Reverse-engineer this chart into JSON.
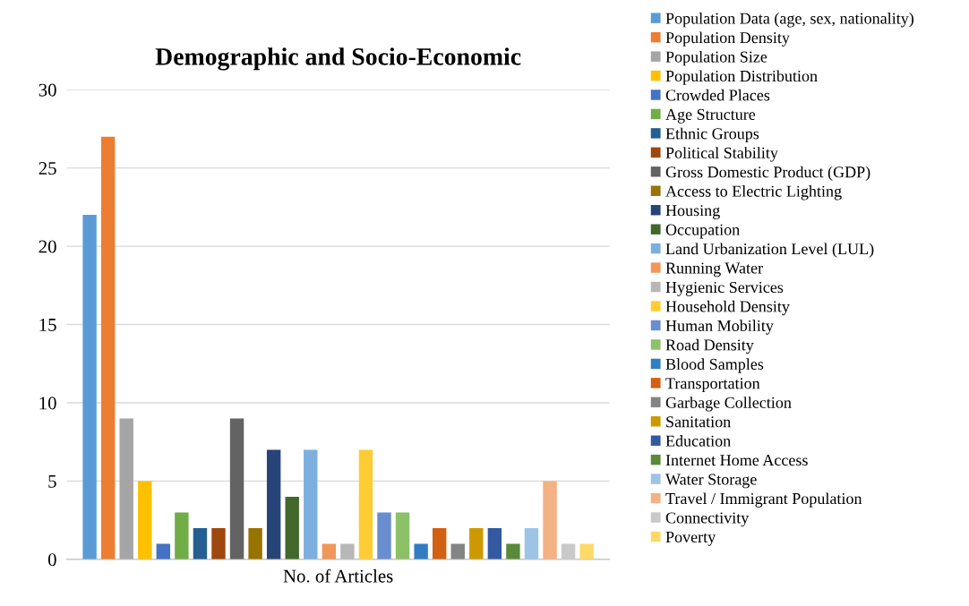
{
  "chart_data": {
    "type": "bar",
    "title": "Demographic and Socio-Economic",
    "categories": [
      "No. of Articles"
    ],
    "ylim": [
      0,
      30
    ],
    "yticks": [
      0,
      5,
      10,
      15,
      20,
      25,
      30
    ],
    "grid": "y",
    "legend": "right",
    "series": [
      {
        "name": "Population Data (age, sex, nationality)",
        "color": "#5b9bd5",
        "values": [
          22
        ]
      },
      {
        "name": "Population Density",
        "color": "#ed7d31",
        "values": [
          27
        ]
      },
      {
        "name": "Population Size",
        "color": "#a5a5a5",
        "values": [
          9
        ]
      },
      {
        "name": "Population Distribution",
        "color": "#ffc000",
        "values": [
          5
        ]
      },
      {
        "name": "Crowded Places",
        "color": "#4472c4",
        "values": [
          1
        ]
      },
      {
        "name": "Age Structure",
        "color": "#70ad47",
        "values": [
          3
        ]
      },
      {
        "name": "Ethnic Groups",
        "color": "#255e91",
        "values": [
          2
        ]
      },
      {
        "name": "Political Stability",
        "color": "#9e480e",
        "values": [
          2
        ]
      },
      {
        "name": "Gross Domestic Product (GDP)",
        "color": "#636363",
        "values": [
          9
        ]
      },
      {
        "name": "Access to Electric Lighting",
        "color": "#997300",
        "values": [
          2
        ]
      },
      {
        "name": "Housing",
        "color": "#264478",
        "values": [
          7
        ]
      },
      {
        "name": "Occupation",
        "color": "#43682b",
        "values": [
          4
        ]
      },
      {
        "name": "Land Urbanization Level (LUL)",
        "color": "#7cafdd",
        "values": [
          7
        ]
      },
      {
        "name": "Running Water",
        "color": "#f1975a",
        "values": [
          1
        ]
      },
      {
        "name": "Hygienic Services",
        "color": "#b7b7b7",
        "values": [
          1
        ]
      },
      {
        "name": "Household Density",
        "color": "#ffcd33",
        "values": [
          7
        ]
      },
      {
        "name": "Human Mobility",
        "color": "#698ed0",
        "values": [
          3
        ]
      },
      {
        "name": "Road Density",
        "color": "#8cc168",
        "values": [
          3
        ]
      },
      {
        "name": "Blood Samples",
        "color": "#327dc2",
        "values": [
          1
        ]
      },
      {
        "name": "Transportation",
        "color": "#d26012",
        "values": [
          2
        ]
      },
      {
        "name": "Garbage Collection",
        "color": "#848484",
        "values": [
          1
        ]
      },
      {
        "name": "Sanitation",
        "color": "#cc9a00",
        "values": [
          2
        ]
      },
      {
        "name": "Education",
        "color": "#335aa1",
        "values": [
          2
        ]
      },
      {
        "name": "Internet Home Access",
        "color": "#5a8a39",
        "values": [
          1
        ]
      },
      {
        "name": "Water Storage",
        "color": "#9dc3e6",
        "values": [
          2
        ]
      },
      {
        "name": "Travel / Immigrant Population",
        "color": "#f4b183",
        "values": [
          5
        ]
      },
      {
        "name": "Connectivity",
        "color": "#c9c9c9",
        "values": [
          1
        ]
      },
      {
        "name": "Poverty",
        "color": "#ffd966",
        "values": [
          1
        ]
      }
    ]
  }
}
